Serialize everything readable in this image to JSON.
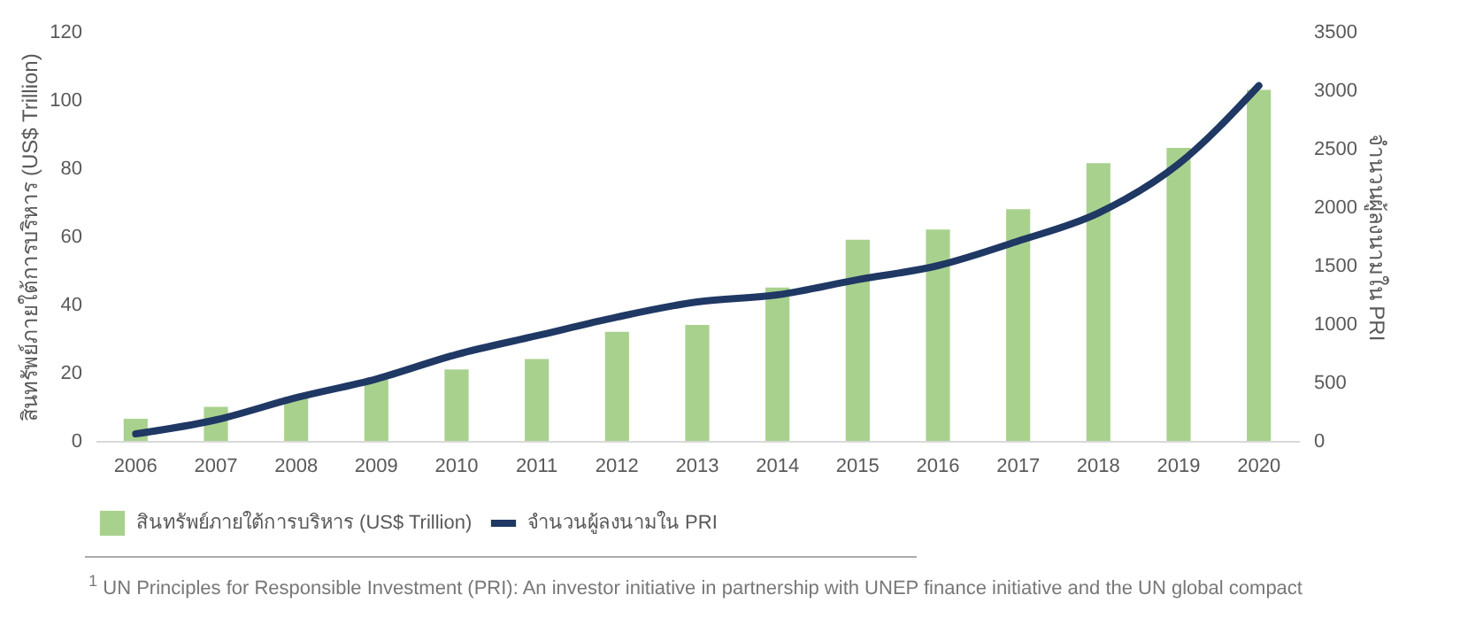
{
  "chart_data": {
    "type": "bar",
    "categories": [
      "2006",
      "2007",
      "2008",
      "2009",
      "2010",
      "2011",
      "2012",
      "2013",
      "2014",
      "2015",
      "2016",
      "2017",
      "2018",
      "2019",
      "2020"
    ],
    "ylabel": "สินทรัพย์ภายใต้การบริหาร (US$ Trillion)",
    "y2label": "จำนวนผู้ลงนามใน PRI",
    "series": [
      {
        "name": "สินทรัพย์ภายใต้การบริหาร (US$ Trillion)",
        "color": "#a9d18e",
        "values": [
          6.5,
          10,
          13,
          18,
          21,
          24,
          32,
          34,
          45,
          59,
          62,
          68,
          81.5,
          86,
          103
        ]
      },
      {
        "name": "จำนวนผู้ลงนามใน PRI",
        "type": "line",
        "axis": "y2",
        "color": "#1f3864",
        "values": [
          60,
          180,
          370,
          530,
          740,
          900,
          1060,
          1190,
          1250,
          1380,
          1500,
          1710,
          1950,
          2370,
          3040
        ]
      }
    ],
    "ylim": [
      0,
      120
    ],
    "yticks": [
      0,
      20,
      40,
      60,
      80,
      100,
      120
    ],
    "y2lim": [
      0,
      3500
    ],
    "y2ticks": [
      0,
      500,
      1000,
      1500,
      2000,
      2500,
      3000,
      3500
    ],
    "grid": false,
    "legend": "bottom",
    "annotations": [
      "$^{1}$ UN Principles for Responsible Investment (PRI): An investor initiative in partnership with UNEP finance initiative and the UN global compact"
    ]
  }
}
